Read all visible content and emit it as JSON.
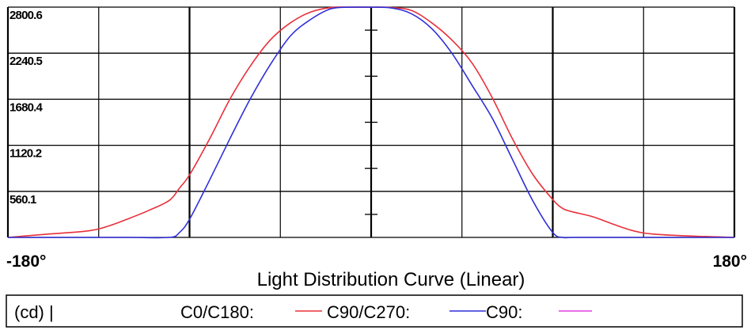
{
  "chart_data": {
    "type": "line",
    "title": "Light Distribution Curve (Linear)",
    "unit_label": "(cd) |",
    "x_range": [
      -180,
      180
    ],
    "x_tick_labels": [
      "-180°",
      "180°"
    ],
    "y_range": [
      0,
      2800.6
    ],
    "y_tick_labels": [
      "560.1",
      "1120.2",
      "1680.4",
      "2240.5",
      "2800.6"
    ],
    "y_tick_values": [
      560.1,
      1120.2,
      1680.4,
      2240.5,
      2800.6
    ],
    "grid": true,
    "legend_position": "bottom",
    "series": [
      {
        "name": "C0/C180:",
        "color": "#e8303a",
        "x": [
          -180,
          -160,
          -140,
          -130,
          -120,
          -110,
          -100,
          -95,
          -90,
          -80,
          -70,
          -60,
          -50,
          -40,
          -30,
          -20,
          -10,
          0,
          10,
          20,
          30,
          40,
          50,
          60,
          70,
          80,
          90,
          95,
          100,
          110,
          120,
          130,
          140,
          160,
          180
        ],
        "y": [
          0,
          40,
          80,
          140,
          230,
          330,
          450,
          600,
          760,
          1200,
          1680,
          2080,
          2400,
          2610,
          2740,
          2795,
          2800,
          2800,
          2795,
          2760,
          2610,
          2400,
          2120,
          1700,
          1200,
          770,
          460,
          350,
          310,
          250,
          160,
          80,
          40,
          15,
          0
        ]
      },
      {
        "name": "C90/C270:",
        "color": "#2f2fd8",
        "x": [
          -180,
          -160,
          -140,
          -120,
          -100,
          -95,
          -90,
          -80,
          -70,
          -60,
          -50,
          -40,
          -30,
          -20,
          -10,
          0,
          10,
          20,
          30,
          40,
          50,
          60,
          70,
          80,
          90,
          95,
          100,
          120,
          140,
          160,
          180
        ],
        "y": [
          0,
          0,
          0,
          0,
          0,
          60,
          220,
          700,
          1200,
          1680,
          2100,
          2450,
          2650,
          2780,
          2800,
          2800,
          2790,
          2720,
          2540,
          2240,
          1850,
          1450,
          950,
          450,
          60,
          0,
          0,
          0,
          0,
          0,
          0
        ]
      },
      {
        "name": "C90:",
        "color": "#e040e0",
        "x": [],
        "y": []
      }
    ]
  }
}
